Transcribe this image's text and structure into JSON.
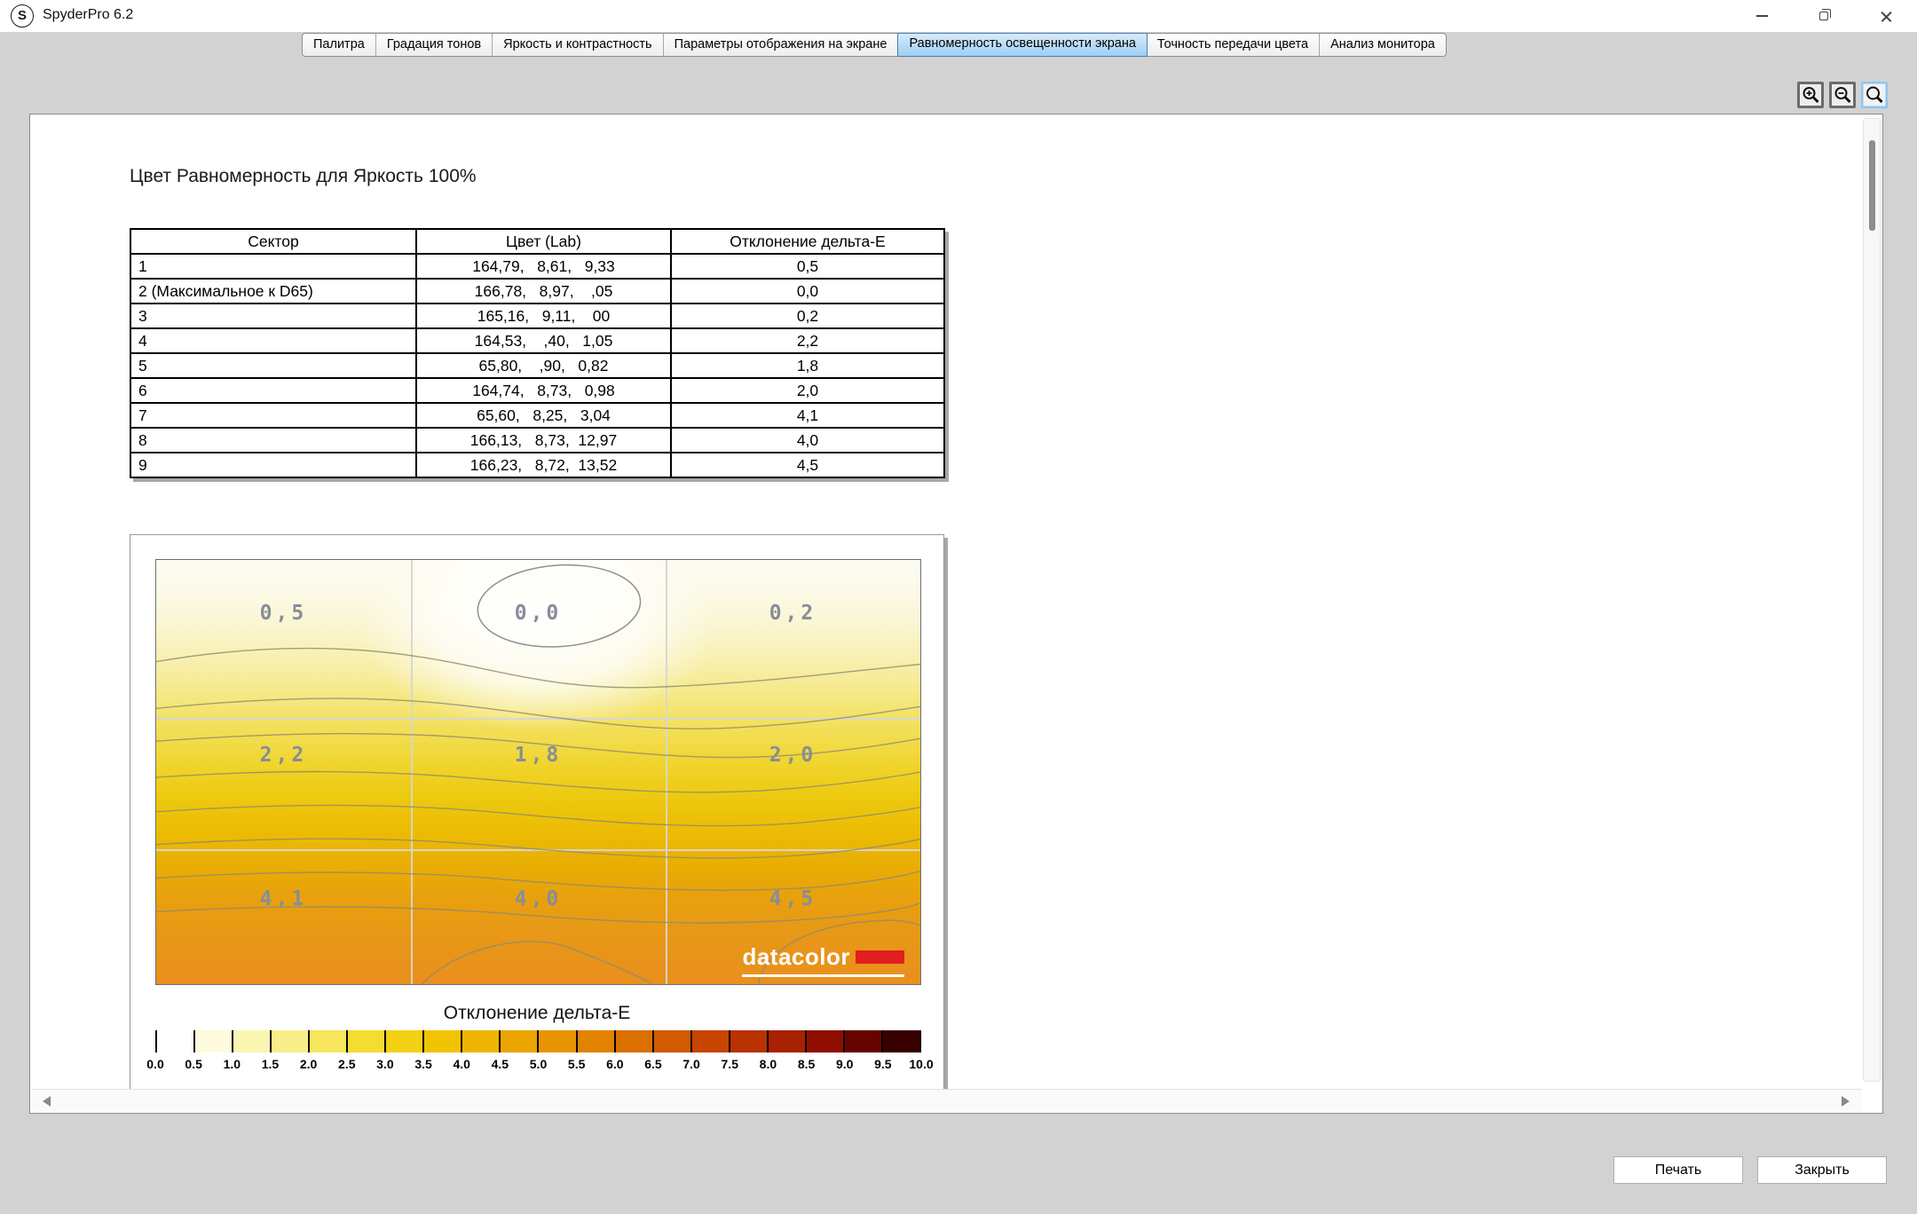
{
  "window": {
    "title": "SpyderPro 6.2"
  },
  "tabs": [
    {
      "label": "Палитра",
      "selected": false
    },
    {
      "label": "Градация тонов",
      "selected": false
    },
    {
      "label": "Яркость и контрастность",
      "selected": false
    },
    {
      "label": "Параметры отображения на экране",
      "selected": false
    },
    {
      "label": "Равномерность освещенности экрана",
      "selected": true
    },
    {
      "label": "Точность передачи цвета",
      "selected": false
    },
    {
      "label": "Анализ монитора",
      "selected": false
    }
  ],
  "icons": {
    "app_logo": "spyder-s-icon",
    "zoom_in": "magnifier-plus-icon",
    "zoom_out": "magnifier-minus-icon",
    "zoom_reset": "magnifier-icon"
  },
  "report": {
    "title": "Цвет Равномерность для Яркость 100%",
    "table": {
      "headers": [
        "Сектор",
        "Цвет (Lab)",
        "Отклонение дельта-E"
      ],
      "rows": [
        {
          "sector": "1",
          "lab": "164,79,   8,61,   9,33",
          "delta": "0,5"
        },
        {
          "sector": "2 (Максимальное к D65)",
          "lab": "166,78,   8,97,    ,05",
          "delta": "0,0"
        },
        {
          "sector": "3",
          "lab": "165,16,   9,11,    00",
          "delta": "0,2"
        },
        {
          "sector": "4",
          "lab": "164,53,    ,40,   1,05",
          "delta": "2,2"
        },
        {
          "sector": "5",
          "lab": "65,80,    ,90,   0,82",
          "delta": "1,8"
        },
        {
          "sector": "6",
          "lab": "164,74,   8,73,   0,98",
          "delta": "2,0"
        },
        {
          "sector": "7",
          "lab": "65,60,   8,25,   3,04",
          "delta": "4,1"
        },
        {
          "sector": "8",
          "lab": "166,13,   8,73,  12,97",
          "delta": "4,0"
        },
        {
          "sector": "9",
          "lab": "166,23,   8,72,  13,52",
          "delta": "4,5"
        }
      ]
    }
  },
  "chart_data": {
    "type": "heatmap",
    "title": "Отклонение дельта-E",
    "rows": 3,
    "cols": 3,
    "values": [
      [
        0.5,
        0.0,
        0.2
      ],
      [
        2.2,
        1.8,
        2.0
      ],
      [
        4.1,
        4.0,
        4.5
      ]
    ],
    "display_labels": [
      "0,5",
      "0,0",
      "0,2",
      "2,2",
      "1,8",
      "2,0",
      "4,1",
      "4,0",
      "4,5"
    ],
    "colorbar": {
      "label": "Отклонение дельта-E",
      "min": 0.0,
      "max": 10.0,
      "step": 0.5,
      "ticks": [
        "0.0",
        "0.5",
        "1.0",
        "1.5",
        "2.0",
        "2.5",
        "3.0",
        "3.5",
        "4.0",
        "4.5",
        "5.0",
        "5.5",
        "6.0",
        "6.5",
        "7.0",
        "7.5",
        "8.0",
        "8.5",
        "9.0",
        "9.5",
        "10.0"
      ],
      "colors": [
        "#ffffff",
        "#fdfadd",
        "#fbf5b2",
        "#f9ee89",
        "#f7e65c",
        "#f5dc31",
        "#f3d114",
        "#f1c403",
        "#eeb500",
        "#eba500",
        "#e79500",
        "#e28300",
        "#db6f00",
        "#d25a00",
        "#c74500",
        "#b93200",
        "#a82100",
        "#8f0e00",
        "#670400",
        "#380100"
      ]
    },
    "logo_text": "datacolor",
    "logo_accent_color": "#e21f1f"
  },
  "buttons": {
    "print": "Печать",
    "close": "Закрыть"
  }
}
